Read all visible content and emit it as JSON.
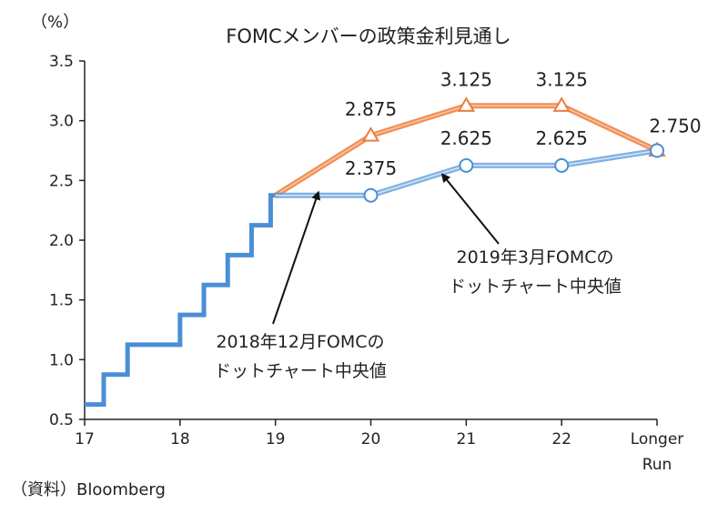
{
  "chart_data": {
    "type": "line",
    "title": "FOMCメンバーの政策金利見通し",
    "unit": "（%）",
    "source": "（資料）Bloomberg",
    "x_ticks": [
      {
        "x": 17,
        "lines": [
          "17"
        ]
      },
      {
        "x": 18,
        "lines": [
          "18"
        ]
      },
      {
        "x": 19,
        "lines": [
          "19"
        ]
      },
      {
        "x": 20,
        "lines": [
          "20"
        ]
      },
      {
        "x": 21,
        "lines": [
          "21"
        ]
      },
      {
        "x": 22,
        "lines": [
          "22"
        ]
      },
      {
        "x": 23,
        "lines": [
          "Longer",
          "Run"
        ]
      }
    ],
    "y_ticks": [
      "0.5",
      "1.0",
      "1.5",
      "2.0",
      "2.5",
      "3.0",
      "3.5"
    ],
    "ylim": [
      0.5,
      3.5
    ],
    "colors": {
      "history": "#4a8fd6",
      "mar2019": "#4a8fd6",
      "dec2018": "#ee7d3b",
      "axis": "#222222"
    },
    "series": [
      {
        "type": "step",
        "values": [
          [
            17.0,
            0.625
          ],
          [
            17.2,
            0.875
          ],
          [
            17.45,
            1.125
          ],
          [
            18.0,
            1.375
          ],
          [
            18.25,
            1.625
          ],
          [
            18.5,
            1.875
          ],
          [
            18.75,
            2.125
          ],
          [
            18.95,
            2.375
          ],
          [
            19.0,
            2.375
          ]
        ]
      },
      {
        "marker": "circle",
        "values": [
          [
            19.0,
            2.375
          ],
          [
            20.0,
            2.375
          ],
          [
            21.0,
            2.625
          ],
          [
            22.0,
            2.625
          ],
          [
            23.0,
            2.75
          ]
        ],
        "labels": [
          {
            "x": 20,
            "text": "2.375"
          },
          {
            "x": 21,
            "text": "2.625"
          },
          {
            "x": 22,
            "text": "2.625"
          }
        ]
      },
      {
        "marker": "triangle",
        "values": [
          [
            19.0,
            2.375
          ],
          [
            20.0,
            2.875
          ],
          [
            21.0,
            3.125
          ],
          [
            22.0,
            3.125
          ],
          [
            23.0,
            2.75
          ]
        ],
        "labels": [
          {
            "x": 20,
            "text": "2.875"
          },
          {
            "x": 21,
            "text": "3.125"
          },
          {
            "x": 22,
            "text": "3.125"
          },
          {
            "x": 23,
            "text": "2.750"
          }
        ]
      }
    ],
    "annotations": [
      {
        "lines": [
          "2019年3月FOMCの",
          "ドットチャート中央値"
        ],
        "arrow_to": [
          20.75,
          2.55
        ]
      },
      {
        "lines": [
          "2018年12月FOMCの",
          "ドットチャート中央値"
        ],
        "arrow_to": [
          19.45,
          2.4
        ]
      }
    ]
  }
}
